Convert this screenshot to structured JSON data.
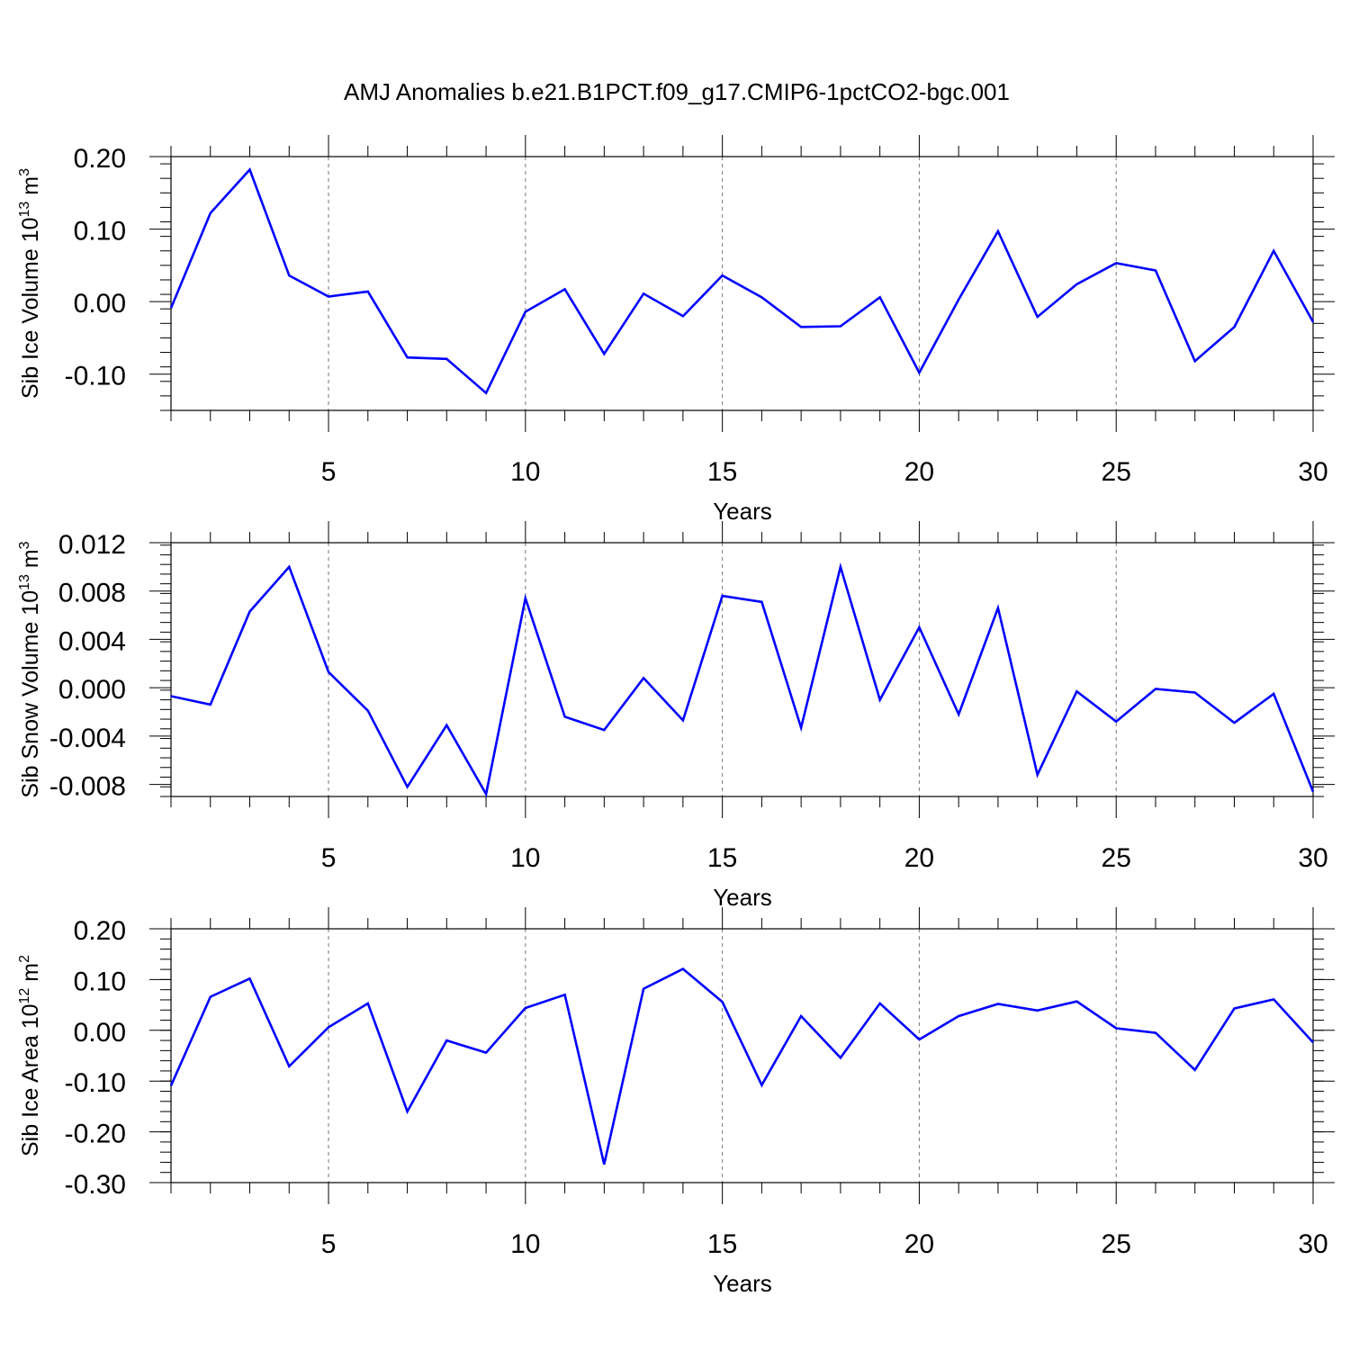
{
  "figure": {
    "title": "AMJ Anomalies b.e21.B1PCT.f09_g17.CMIP6-1pctCO2-bgc.001"
  },
  "chart_data": [
    {
      "type": "line",
      "ylabel_main": "Sib Ice Volume 10",
      "ylabel_exp": "13",
      "ylabel_unit": " m",
      "ylabel_unit_exp": "3",
      "xlabel": "Years",
      "xlim": [
        1,
        30
      ],
      "ylim": [
        -0.15,
        0.2
      ],
      "grid": "vertical-dashed",
      "xticks": [
        5,
        10,
        15,
        20,
        25,
        30
      ],
      "xtick_labels": [
        "5",
        "10",
        "15",
        "20",
        "25",
        "30"
      ],
      "yticks": [
        0.2,
        0.1,
        0.0,
        -0.1
      ],
      "ytick_labels": [
        "0.20",
        "0.10",
        "0.00",
        "-0.10"
      ],
      "color": "#0000ff",
      "x": [
        1,
        2,
        3,
        4,
        5,
        6,
        7,
        8,
        9,
        10,
        11,
        12,
        13,
        14,
        15,
        16,
        17,
        18,
        19,
        20,
        21,
        22,
        23,
        24,
        25,
        26,
        27,
        28,
        29,
        30
      ],
      "values": [
        -0.009,
        0.122,
        0.182,
        0.036,
        0.007,
        0.014,
        -0.077,
        -0.079,
        -0.126,
        -0.014,
        0.017,
        -0.072,
        0.011,
        -0.02,
        0.036,
        0.006,
        -0.035,
        -0.034,
        0.006,
        -0.098,
        0.003,
        0.097,
        -0.021,
        0.024,
        0.053,
        0.043,
        -0.082,
        -0.035,
        0.07,
        -0.028
      ]
    },
    {
      "type": "line",
      "ylabel_main": "Sib Snow Volume 10",
      "ylabel_exp": "13",
      "ylabel_unit": " m",
      "ylabel_unit_exp": "3",
      "xlabel": "Years",
      "xlim": [
        1,
        30
      ],
      "ylim": [
        -0.009,
        0.012
      ],
      "grid": "vertical-dashed",
      "xticks": [
        5,
        10,
        15,
        20,
        25,
        30
      ],
      "xtick_labels": [
        "5",
        "10",
        "15",
        "20",
        "25",
        "30"
      ],
      "yticks": [
        0.012,
        0.008,
        0.004,
        0.0,
        -0.004,
        -0.008
      ],
      "ytick_labels": [
        "0.012",
        "0.008",
        "0.004",
        "0.000",
        "-0.004",
        "-0.008"
      ],
      "color": "#0000ff",
      "x": [
        1,
        2,
        3,
        4,
        5,
        6,
        7,
        8,
        9,
        10,
        11,
        12,
        13,
        14,
        15,
        16,
        17,
        18,
        19,
        20,
        21,
        22,
        23,
        24,
        25,
        26,
        27,
        28,
        29,
        30
      ],
      "values": [
        -0.0007,
        -0.0014,
        0.0063,
        0.01,
        0.0013,
        -0.0019,
        -0.0082,
        -0.0031,
        -0.0088,
        0.0074,
        -0.0024,
        -0.0035,
        0.0008,
        -0.0027,
        0.0076,
        0.0071,
        -0.0033,
        0.01,
        -0.001,
        0.005,
        -0.0022,
        0.0066,
        -0.0072,
        -0.0003,
        -0.0028,
        -0.0001,
        -0.0004,
        -0.0029,
        -0.0005,
        -0.0086
      ]
    },
    {
      "type": "line",
      "ylabel_main": "Sib Ice Area 10",
      "ylabel_exp": "12",
      "ylabel_unit": " m",
      "ylabel_unit_exp": "2",
      "xlabel": "Years",
      "xlim": [
        1,
        30
      ],
      "ylim": [
        -0.3,
        0.2
      ],
      "grid": "vertical-dashed",
      "xticks": [
        5,
        10,
        15,
        20,
        25,
        30
      ],
      "xtick_labels": [
        "5",
        "10",
        "15",
        "20",
        "25",
        "30"
      ],
      "yticks": [
        0.2,
        0.1,
        0.0,
        -0.1,
        -0.2,
        -0.3
      ],
      "ytick_labels": [
        "0.20",
        "0.10",
        "0.00",
        "-0.10",
        "-0.20",
        "-0.30"
      ],
      "color": "#0000ff",
      "x": [
        1,
        2,
        3,
        4,
        5,
        6,
        7,
        8,
        9,
        10,
        11,
        12,
        13,
        14,
        15,
        16,
        17,
        18,
        19,
        20,
        21,
        22,
        23,
        24,
        25,
        26,
        27,
        28,
        29,
        30
      ],
      "values": [
        -0.109,
        0.066,
        0.102,
        -0.071,
        0.006,
        0.053,
        -0.16,
        -0.02,
        -0.044,
        0.044,
        0.07,
        -0.264,
        0.082,
        0.121,
        0.056,
        -0.108,
        0.028,
        -0.054,
        0.053,
        -0.018,
        0.028,
        0.052,
        0.039,
        0.057,
        0.004,
        -0.005,
        -0.078,
        0.043,
        0.061,
        -0.024
      ]
    }
  ]
}
